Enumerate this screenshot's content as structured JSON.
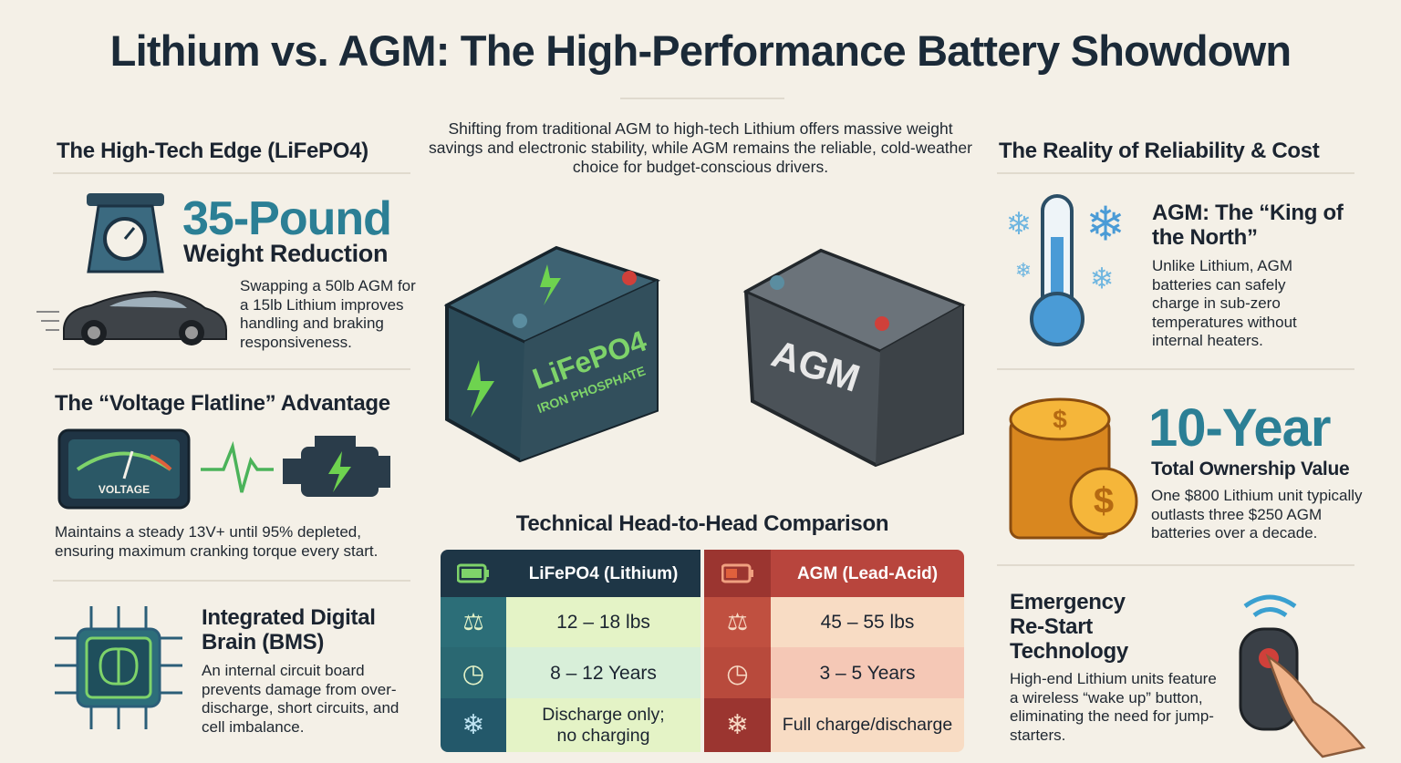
{
  "header": {
    "title": "Lithium vs. AGM: The High-Performance Battery Showdown",
    "intro": "Shifting from traditional AGM to high-tech Lithium offers massive weight savings and electronic stability, while AGM remains the reliable, cold-weather choice for budget-conscious drivers."
  },
  "left": {
    "heading": "The High-Tech Edge (LiFePO4)",
    "weight": {
      "headline": "35-Pound",
      "subhead": "Weight Reduction",
      "text": "Swapping a 50lb AGM for a 15lb Lithium improves handling and braking responsiveness."
    },
    "voltage": {
      "heading": "The “Voltage Flatline” Advantage",
      "gauge_label": "VOLTAGE",
      "text": "Maintains a steady 13V+ until 95% depleted, ensuring maximum cranking torque every start."
    },
    "bms": {
      "heading": "Integrated Digital Brain (BMS)",
      "text": "An internal circuit board prevents damage from over-discharge, short circuits, and cell imbalance."
    }
  },
  "center": {
    "lithium_battery": {
      "label": "LiFePO4",
      "sublabel": "IRON PHOSPHATE"
    },
    "agm_battery": {
      "label": "AGM"
    },
    "table": {
      "title": "Technical Head-to-Head Comparison",
      "columns": [
        "LiFePO4 (Lithium)",
        "AGM (Lead-Acid)"
      ],
      "rows": [
        [
          "12 – 18 lbs",
          "45 – 55 lbs"
        ],
        [
          "8 – 12 Years",
          "3 – 5 Years"
        ],
        [
          "Discharge only; no charging",
          "Full charge/discharge"
        ]
      ]
    }
  },
  "right": {
    "heading": "The Reality of Reliability & Cost",
    "cold": {
      "heading": "AGM: The “King of the North”",
      "text": "Unlike Lithium, AGM batteries can safely charge in sub-zero temperatures without internal heaters."
    },
    "value": {
      "headline": "10-Year",
      "subhead": "Total Ownership Value",
      "text": "One $800 Lithium unit typically outlasts three $250 AGM batteries over a decade."
    },
    "restart": {
      "heading": "Emergency Re-Start Technology",
      "text": "High-end Lithium units feature a wireless “wake up” button, eliminating the need for jump-starters."
    }
  }
}
